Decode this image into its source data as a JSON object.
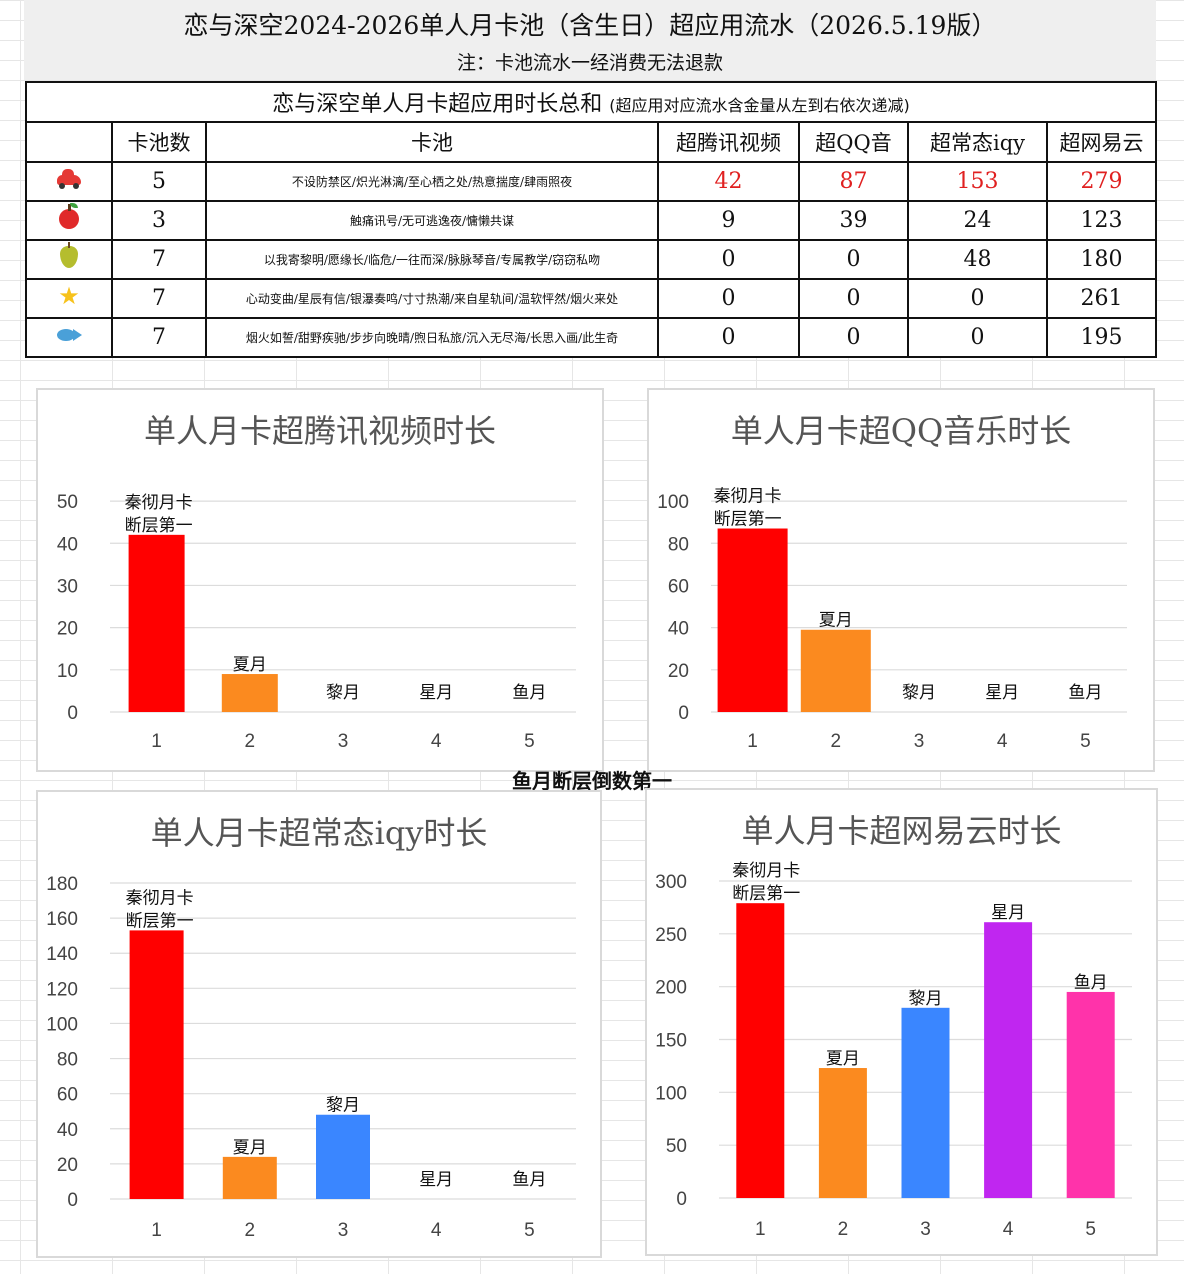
{
  "header": {
    "title": "恋与深空2024-2026单人月卡池（含生日）超应用流水（2026.5.19版）",
    "note": "注：卡池流水一经消费无法退款"
  },
  "table": {
    "caption": "恋与深空单人月卡超应用时长总和",
    "caption_sub": "(超应用对应流水含金量从左到右依次递减)",
    "columns": [
      "",
      "卡池数",
      "卡池",
      "超腾讯视频",
      "超QQ音",
      "超常态iqy",
      "超网易云"
    ],
    "rows": [
      {
        "icon": "car-icon",
        "count": "5",
        "pools": "不设防禁区/炽光淋漓/至心栖之处/热意揣度/肆雨照夜",
        "v1": "42",
        "v2": "87",
        "v3": "153",
        "v4": "279"
      },
      {
        "icon": "apple-icon",
        "count": "3",
        "pools": "触痛讯号/无可逃逸夜/慵懒共谋",
        "v1": "9",
        "v2": "39",
        "v3": "24",
        "v4": "123"
      },
      {
        "icon": "pear-icon",
        "count": "7",
        "pools": "以我寄黎明/愿缘长/临危/一往而深/脉脉琴音/专属教学/窃窃私吻",
        "v1": "0",
        "v2": "0",
        "v3": "48",
        "v4": "180"
      },
      {
        "icon": "star-icon",
        "count": "7",
        "pools": "心动变曲/星辰有信/银瀑奏鸣/寸寸热潮/来自星轨间/温软怦然/烟火来处",
        "v1": "0",
        "v2": "0",
        "v3": "0",
        "v4": "261"
      },
      {
        "icon": "fish-icon",
        "count": "7",
        "pools": "烟火如誓/甜野疾驰/步步向晚晴/煦日私旅/沉入无尽海/长思入画/此生奇",
        "v1": "0",
        "v2": "0",
        "v3": "0",
        "v4": "195"
      }
    ]
  },
  "middle_note": "鱼月断层倒数第一",
  "chart_data": [
    {
      "type": "bar",
      "title": "单人月卡超腾讯视频时长",
      "categories": [
        "1",
        "2",
        "3",
        "4",
        "5"
      ],
      "values": [
        42,
        9,
        0,
        0,
        0
      ],
      "bar_labels": [
        "秦彻月卡\n断层第一",
        "夏月",
        "黎月",
        "星月",
        "鱼月"
      ],
      "colors": [
        "#ff0000",
        "#fb8a1f",
        "#3a86ff",
        "#c026f0",
        "#ff33aa"
      ],
      "yticks": [
        0,
        10,
        20,
        30,
        40,
        50
      ],
      "ylim": [
        0,
        55
      ],
      "grid": true
    },
    {
      "type": "bar",
      "title": "单人月卡超QQ音乐时长",
      "categories": [
        "1",
        "2",
        "3",
        "4",
        "5"
      ],
      "values": [
        87,
        39,
        0,
        0,
        0
      ],
      "bar_labels": [
        "秦彻月卡\n断层第一",
        "夏月",
        "黎月",
        "星月",
        "鱼月"
      ],
      "colors": [
        "#ff0000",
        "#fb8a1f",
        "#3a86ff",
        "#c026f0",
        "#ff33aa"
      ],
      "yticks": [
        0,
        20,
        40,
        60,
        80,
        100
      ],
      "ylim": [
        0,
        110
      ],
      "grid": true
    },
    {
      "type": "bar",
      "title": "单人月卡超常态iqy时长",
      "categories": [
        "1",
        "2",
        "3",
        "4",
        "5"
      ],
      "values": [
        153,
        24,
        48,
        0,
        0
      ],
      "bar_labels": [
        "秦彻月卡\n断层第一",
        "夏月",
        "黎月",
        "星月",
        "鱼月"
      ],
      "colors": [
        "#ff0000",
        "#fb8a1f",
        "#3a86ff",
        "#c026f0",
        "#ff33aa"
      ],
      "yticks": [
        0,
        20,
        40,
        60,
        80,
        100,
        120,
        140,
        160,
        180
      ],
      "ylim": [
        0,
        180
      ],
      "grid": true
    },
    {
      "type": "bar",
      "title": "单人月卡超网易云时长",
      "categories": [
        "1",
        "2",
        "3",
        "4",
        "5"
      ],
      "values": [
        279,
        123,
        180,
        261,
        195
      ],
      "bar_labels": [
        "秦彻月卡\n断层第一",
        "夏月",
        "黎月",
        "星月",
        "鱼月"
      ],
      "colors": [
        "#ff0000",
        "#fb8a1f",
        "#3a86ff",
        "#c026f0",
        "#ff33aa"
      ],
      "yticks": [
        0,
        50,
        100,
        150,
        200,
        250,
        300
      ],
      "ylim": [
        0,
        300
      ],
      "grid": true
    }
  ]
}
